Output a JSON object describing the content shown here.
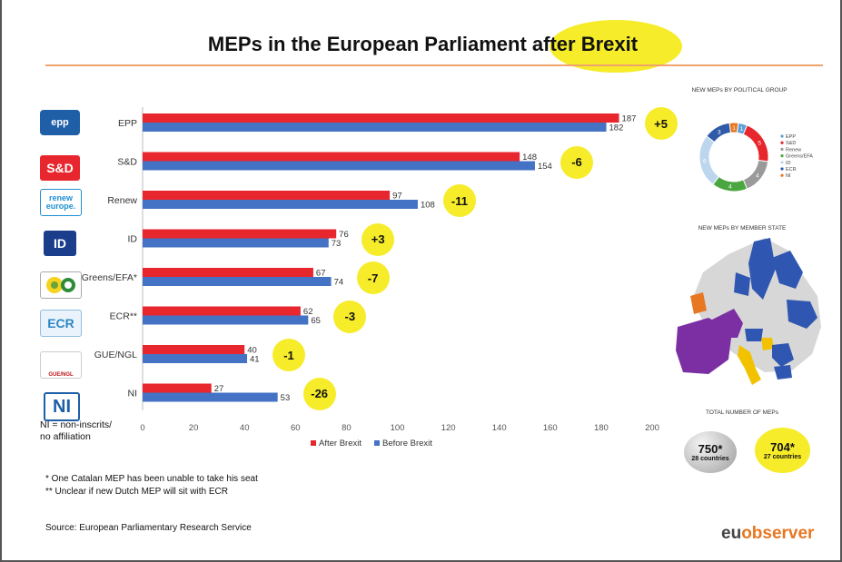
{
  "title": {
    "main": "MEPs in the European Parliament",
    "highlight": "after Brexit"
  },
  "parties": [
    {
      "key": "epp",
      "logo_text": "epp"
    },
    {
      "key": "sd",
      "logo_text": "S&D"
    },
    {
      "key": "renew",
      "logo_text": "renew europe."
    },
    {
      "key": "id",
      "logo_text": "ID"
    },
    {
      "key": "greens",
      "logo_text": ""
    },
    {
      "key": "ecr",
      "logo_text": "ECR"
    },
    {
      "key": "gue",
      "logo_text": "GUE/NGL"
    },
    {
      "key": "ni",
      "logo_text": "NI"
    }
  ],
  "chart_data": {
    "type": "bar",
    "orientation": "horizontal",
    "categories": [
      "EPP",
      "S&D",
      "Renew",
      "ID",
      "Greens/EFA*",
      "ECR**",
      "GUE/NGL",
      "NI"
    ],
    "series": [
      {
        "name": "After Brexit",
        "values": [
          187,
          148,
          97,
          76,
          67,
          62,
          40,
          27
        ],
        "color": "#e8262d"
      },
      {
        "name": "Before Brexit",
        "values": [
          182,
          154,
          108,
          73,
          74,
          65,
          41,
          53
        ],
        "color": "#4472c4"
      }
    ],
    "changes": [
      "+5",
      "-6",
      "-11",
      "+3",
      "-7",
      "-3",
      "-1",
      "-26"
    ],
    "xlim": [
      0,
      200
    ],
    "xticks": [
      0,
      20,
      40,
      60,
      80,
      100,
      120,
      140,
      160,
      180,
      200
    ],
    "legend_position": "bottom",
    "xlabel": "",
    "ylabel": ""
  },
  "ni_legend": [
    "NI = non-inscrits/",
    "no affiliation"
  ],
  "notes": [
    "*  One Catalan MEP has been unable to take his seat",
    "** Unclear if new Dutch MEP will sit with ECR"
  ],
  "source": "Source: European Parliamentary Research Service",
  "brand": {
    "part1": "eu",
    "part2": "observer"
  },
  "side": {
    "group_title": "NEW MEPs BY POLITICAL GROUP",
    "state_title": "NEW MEPs BY MEMBER STATE",
    "total_title": "TOTAL NUMBER OF MEPs",
    "donut_legend": [
      "EPP",
      "S&D",
      "Renew",
      "Greens/EFA",
      "ID",
      "ECR",
      "NI"
    ],
    "donut_colors": [
      "#5aa0d8",
      "#e8262d",
      "#9a9a9a",
      "#4aa640",
      "#bcd6ee",
      "#2f5aa8",
      "#e87722"
    ],
    "donut_labels": [
      "1",
      "5",
      "4",
      "4",
      "6",
      "3",
      "1"
    ],
    "total_before": {
      "value": "750*",
      "caption": "28 countries"
    },
    "total_after": {
      "value": "704*",
      "caption": "27 countries"
    }
  }
}
